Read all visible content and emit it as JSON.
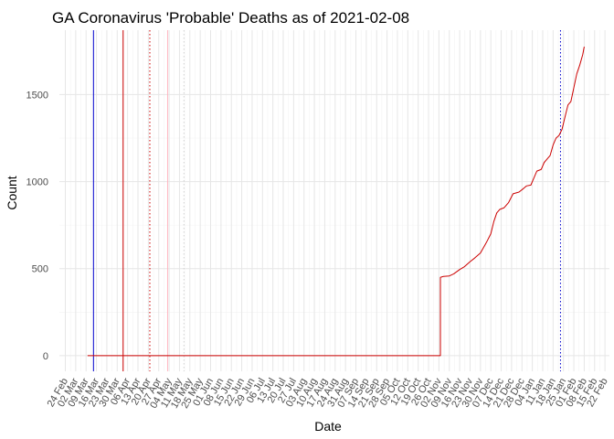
{
  "chart_data": {
    "type": "line",
    "title": "GA Coronavirus 'Probable' Deaths as of 2021-02-08",
    "xlabel": "Date",
    "ylabel": "Count",
    "year": 2020,
    "xlim": [
      "2020-02-20",
      "2021-02-25"
    ],
    "ylim": [
      -90,
      1870
    ],
    "y_ticks": [
      0,
      500,
      1000,
      1500
    ],
    "x_tick_labels": [
      "24 Feb",
      "02 Mar",
      "09 Mar",
      "16 Mar",
      "23 Mar",
      "30 Mar",
      "06 Apr",
      "13 Apr",
      "20 Apr",
      "27 Apr",
      "04 May",
      "11 May",
      "18 May",
      "25 May",
      "01 Jun",
      "08 Jun",
      "15 Jun",
      "22 Jun",
      "29 Jun",
      "06 Jul",
      "13 Jul",
      "20 Jul",
      "27 Jul",
      "03 Aug",
      "10 Aug",
      "17 Aug",
      "24 Aug",
      "31 Aug",
      "07 Sep",
      "14 Sep",
      "21 Sep",
      "28 Sep",
      "05 Oct",
      "12 Oct",
      "19 Oct",
      "26 Oct",
      "02 Nov",
      "09 Nov",
      "16 Nov",
      "23 Nov",
      "30 Nov",
      "07 Dec",
      "14 Dec",
      "21 Dec",
      "28 Dec",
      "04 Jan",
      "11 Jan",
      "18 Jan",
      "25 Jan",
      "01 Feb",
      "08 Feb",
      "15 Feb",
      "22 Feb"
    ],
    "grid": true,
    "series": [
      {
        "color": "#cc0000",
        "points": [
          [
            "2020-03-10",
            0
          ],
          [
            "2020-11-03",
            0
          ],
          [
            "2020-11-03",
            450
          ],
          [
            "2020-11-05",
            455
          ],
          [
            "2020-11-09",
            458
          ],
          [
            "2020-11-12",
            470
          ],
          [
            "2020-11-16",
            495
          ],
          [
            "2020-11-19",
            510
          ],
          [
            "2020-11-23",
            540
          ],
          [
            "2020-11-26",
            560
          ],
          [
            "2020-11-30",
            590
          ],
          [
            "2020-12-02",
            620
          ],
          [
            "2020-12-04",
            650
          ],
          [
            "2020-12-07",
            700
          ],
          [
            "2020-12-09",
            770
          ],
          [
            "2020-12-11",
            820
          ],
          [
            "2020-12-13",
            840
          ],
          [
            "2020-12-16",
            850
          ],
          [
            "2020-12-19",
            880
          ],
          [
            "2020-12-22",
            930
          ],
          [
            "2020-12-26",
            940
          ],
          [
            "2020-12-29",
            960
          ],
          [
            "2020-12-31",
            975
          ],
          [
            "2021-01-03",
            980
          ],
          [
            "2021-01-05",
            1020
          ],
          [
            "2021-01-07",
            1060
          ],
          [
            "2021-01-10",
            1070
          ],
          [
            "2021-01-12",
            1110
          ],
          [
            "2021-01-14",
            1130
          ],
          [
            "2021-01-16",
            1150
          ],
          [
            "2021-01-18",
            1210
          ],
          [
            "2021-01-20",
            1250
          ],
          [
            "2021-01-22",
            1265
          ],
          [
            "2021-01-24",
            1300
          ],
          [
            "2021-01-26",
            1370
          ],
          [
            "2021-01-28",
            1440
          ],
          [
            "2021-01-30",
            1460
          ],
          [
            "2021-02-01",
            1540
          ],
          [
            "2021-02-03",
            1620
          ],
          [
            "2021-02-05",
            1670
          ],
          [
            "2021-02-07",
            1730
          ],
          [
            "2021-02-08",
            1775
          ]
        ]
      }
    ],
    "vertical_lines": [
      {
        "date": "2020-03-14",
        "color": "#0000cc",
        "style": "solid"
      },
      {
        "date": "2020-04-03",
        "color": "#cc0000",
        "style": "solid"
      },
      {
        "date": "2020-04-21",
        "color": "#cc0000",
        "style": "dotted"
      },
      {
        "date": "2020-05-03",
        "color": "#ffb6c1",
        "style": "solid"
      },
      {
        "date": "2020-05-14",
        "color": "#d0d0d0",
        "style": "dotted"
      },
      {
        "date": "2021-01-23",
        "color": "#0000cc",
        "style": "dotted"
      }
    ]
  },
  "colors": {
    "grid_major": "#e6e6e6",
    "grid_minor": "#f2f2f2",
    "tick_text": "#4d4d4d",
    "background": "#ffffff"
  }
}
